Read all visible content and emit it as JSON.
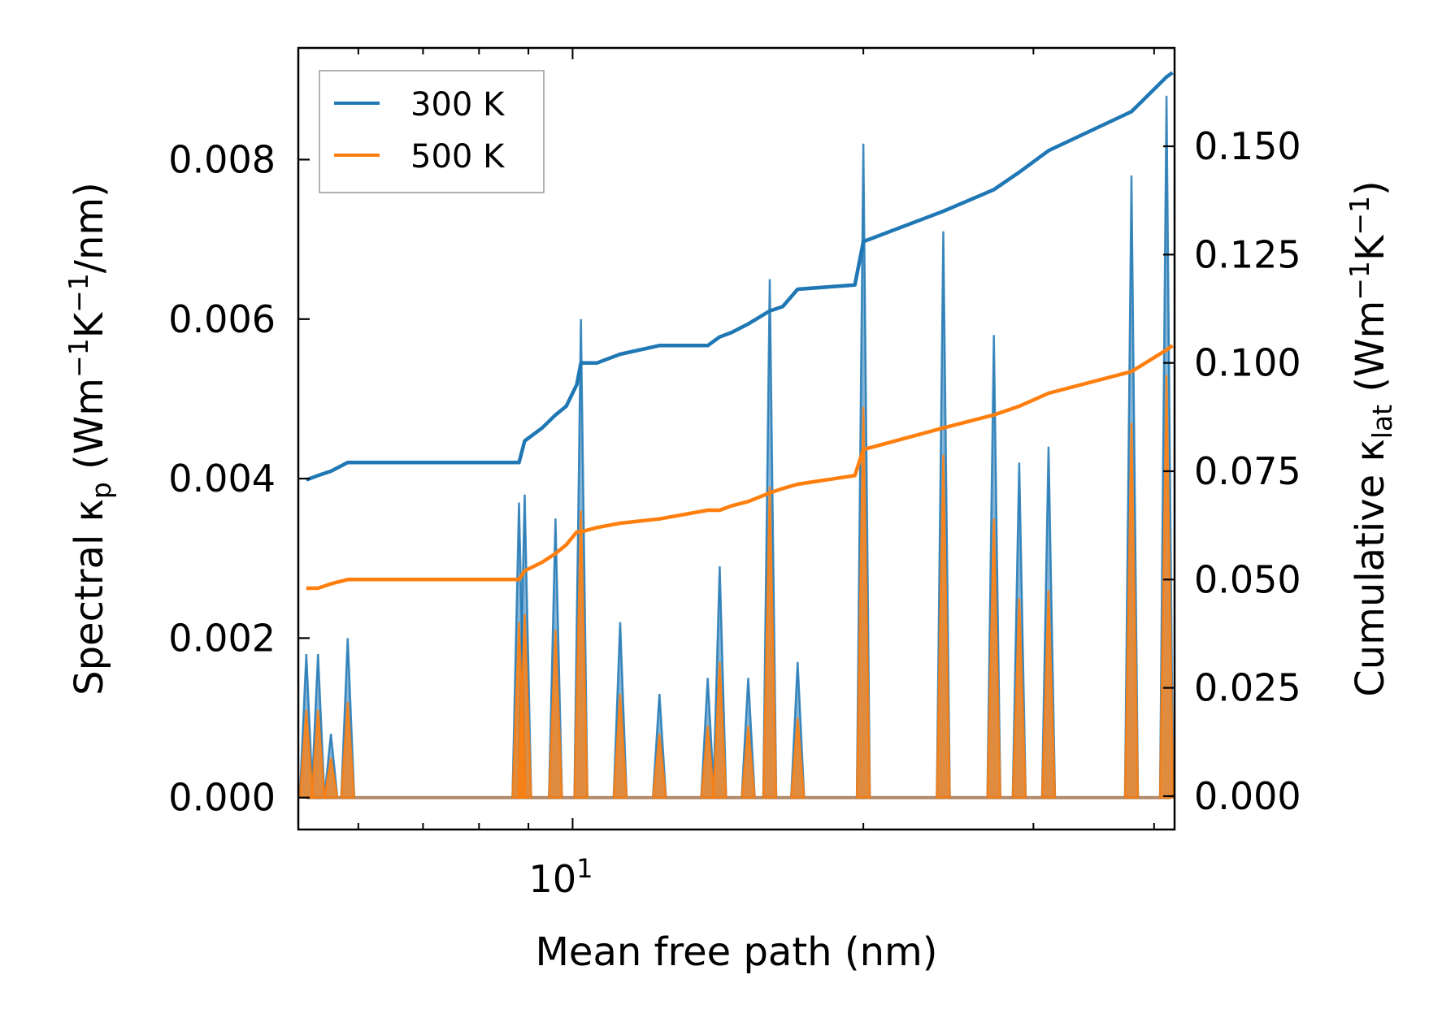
{
  "chart_data": {
    "type": "line",
    "xscale": "log",
    "xlim": [
      5.2,
      42.0
    ],
    "xlabel": "Mean free path (nm)",
    "xticks": [
      {
        "value": 10,
        "base": "10",
        "exp": "1"
      }
    ],
    "y1": {
      "label_pre": "Spectral κ",
      "label_sub": "p",
      "label_post": " (Wm",
      "label_sup1": "−1",
      "label_mid": "K",
      "label_sup2": "−1",
      "label_end": "/nm)",
      "lim": [
        -0.0004,
        0.0094
      ],
      "ticks": [
        "0.000",
        "0.002",
        "0.004",
        "0.006",
        "0.008"
      ],
      "tick_values": [
        0,
        0.002,
        0.004,
        0.006,
        0.008
      ]
    },
    "y2": {
      "label_pre": "Cumulative κ",
      "label_sub": "lat",
      "label_post": " (Wm",
      "label_sup1": "−1",
      "label_mid": "K",
      "label_sup2": "−1",
      "label_end": ")",
      "lim": [
        -0.0077,
        0.1727
      ],
      "ticks": [
        "0.000",
        "0.025",
        "0.050",
        "0.075",
        "0.100",
        "0.125",
        "0.150"
      ],
      "tick_values": [
        0,
        0.025,
        0.05,
        0.075,
        0.1,
        0.125,
        0.15
      ]
    },
    "legend": {
      "position": "top-left",
      "entries": [
        "300 K",
        "500 K"
      ]
    },
    "colors": {
      "300K": "#1f77b4",
      "500K": "#ff7f0e"
    },
    "spectral": {
      "x": [
        5.3,
        5.45,
        5.62,
        5.85,
        8.8,
        8.92,
        9.6,
        10.2,
        11.2,
        12.3,
        13.8,
        14.2,
        15.2,
        16.0,
        17.1,
        20.0,
        24.2,
        27.3,
        29.0,
        31.1,
        37.9,
        41.2
      ],
      "300K": [
        0.0018,
        0.0018,
        0.0008,
        0.002,
        0.0037,
        0.0038,
        0.0035,
        0.006,
        0.0022,
        0.0013,
        0.0015,
        0.0029,
        0.0015,
        0.0065,
        0.0017,
        0.0082,
        0.0071,
        0.0058,
        0.0042,
        0.0044,
        0.0078,
        0.0088
      ],
      "500K": [
        0.0011,
        0.0011,
        0.0005,
        0.0012,
        0.0022,
        0.0023,
        0.0021,
        0.0036,
        0.0013,
        0.0008,
        0.0009,
        0.0017,
        0.0009,
        0.0039,
        0.001,
        0.0049,
        0.0043,
        0.0035,
        0.0025,
        0.0026,
        0.0047,
        0.0053
      ]
    },
    "cumulative": {
      "x": [
        5.3,
        5.45,
        5.62,
        5.85,
        8.8,
        8.92,
        9.3,
        9.6,
        9.85,
        10.1,
        10.2,
        10.6,
        11.2,
        12.3,
        13.8,
        14.2,
        14.6,
        15.2,
        16.0,
        16.5,
        17.1,
        19.6,
        20.0,
        24.2,
        27.3,
        29.0,
        31.1,
        37.9,
        41.2,
        41.8
      ],
      "300K": [
        0.073,
        0.074,
        0.075,
        0.077,
        0.077,
        0.082,
        0.085,
        0.088,
        0.09,
        0.095,
        0.1,
        0.1,
        0.102,
        0.104,
        0.104,
        0.106,
        0.107,
        0.109,
        0.112,
        0.113,
        0.117,
        0.118,
        0.128,
        0.135,
        0.14,
        0.144,
        0.149,
        0.158,
        0.166,
        0.167
      ],
      "500K": [
        0.048,
        0.048,
        0.049,
        0.05,
        0.05,
        0.052,
        0.054,
        0.056,
        0.058,
        0.061,
        0.061,
        0.062,
        0.063,
        0.064,
        0.066,
        0.066,
        0.067,
        0.068,
        0.07,
        0.071,
        0.072,
        0.074,
        0.08,
        0.085,
        0.088,
        0.09,
        0.093,
        0.098,
        0.103,
        0.104
      ]
    }
  }
}
